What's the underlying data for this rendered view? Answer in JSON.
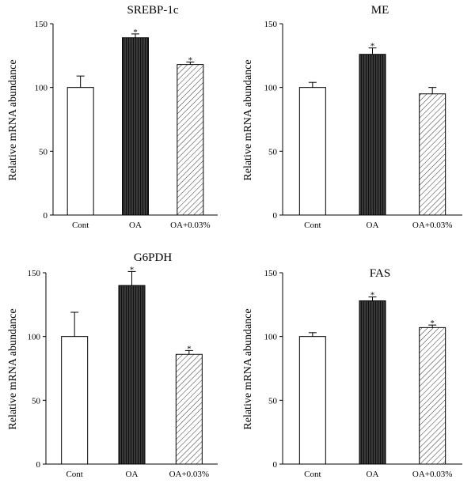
{
  "chart_data": [
    {
      "type": "bar",
      "title": "SREBP-1c",
      "ylabel": "Relative mRNA abundance",
      "categories": [
        "Cont",
        "OA",
        "OA+0.03%"
      ],
      "values": [
        100,
        139,
        118
      ],
      "errors": [
        9,
        3,
        2
      ],
      "significance": [
        "",
        "*",
        "*"
      ],
      "ylim": [
        0,
        150
      ],
      "yticks": [
        0,
        50,
        100,
        150
      ],
      "grid": false
    },
    {
      "type": "bar",
      "title": "ME",
      "ylabel": "Relative mRNA abundance",
      "categories": [
        "Cont",
        "OA",
        "OA+0.03%"
      ],
      "values": [
        100,
        126,
        95
      ],
      "errors": [
        4,
        5,
        5
      ],
      "significance": [
        "",
        "*",
        ""
      ],
      "ylim": [
        0,
        150
      ],
      "yticks": [
        0,
        50,
        100,
        150
      ],
      "grid": false
    },
    {
      "type": "bar",
      "title": "G6PDH",
      "ylabel": "Relative mRNA abundance",
      "categories": [
        "Cont",
        "OA",
        "OA+0.03%"
      ],
      "values": [
        100,
        140,
        86
      ],
      "errors": [
        19,
        11,
        3
      ],
      "significance": [
        "",
        "*",
        "*"
      ],
      "ylim": [
        0,
        150
      ],
      "yticks": [
        0,
        50,
        100,
        150
      ],
      "grid": false
    },
    {
      "type": "bar",
      "title": "FAS",
      "ylabel": "Relative mRNA abundance",
      "categories": [
        "Cont",
        "OA",
        "OA+0.03%"
      ],
      "values": [
        100,
        128,
        107
      ],
      "errors": [
        3,
        3,
        2
      ],
      "significance": [
        "",
        "*",
        "*"
      ],
      "ylim": [
        0,
        150
      ],
      "yticks": [
        0,
        50,
        100,
        150
      ],
      "grid": false
    }
  ],
  "styles": {
    "bar_fill_cont": "#ffffff",
    "bar_fill_oa": "#3a3a3a",
    "bar_stripe_oa": "#111111",
    "bar_hatch_oa003": "#333333",
    "stroke": "#000000"
  }
}
